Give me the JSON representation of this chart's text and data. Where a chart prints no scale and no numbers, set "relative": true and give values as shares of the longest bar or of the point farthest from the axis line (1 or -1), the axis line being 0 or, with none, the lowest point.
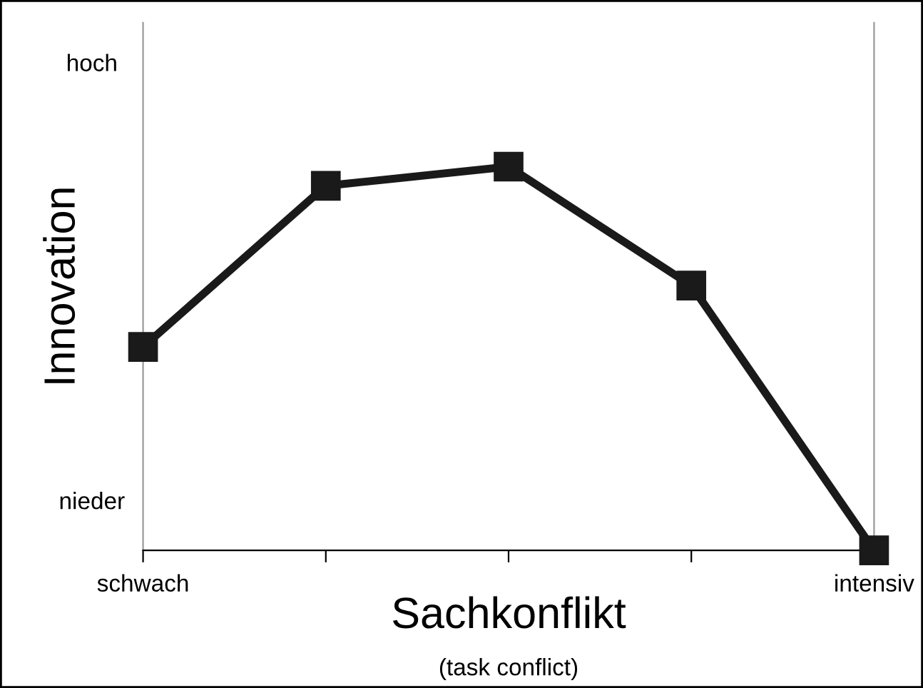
{
  "chart_data": {
    "type": "line",
    "relative": true,
    "xlabel": "Sachkonflikt",
    "ylabel": "Innovation",
    "annotations": [
      "hoch",
      "nieder",
      "(task conflict)"
    ],
    "categories": [
      "schwach",
      null,
      null,
      null,
      "intensiv"
    ],
    "series": [
      {
        "color": "#1a1a1a",
        "values": [
          0.53,
          0.95,
          1,
          0.69,
          0
        ]
      }
    ],
    "marker": "square",
    "line_style": "solid",
    "grid": false,
    "legend": false
  }
}
